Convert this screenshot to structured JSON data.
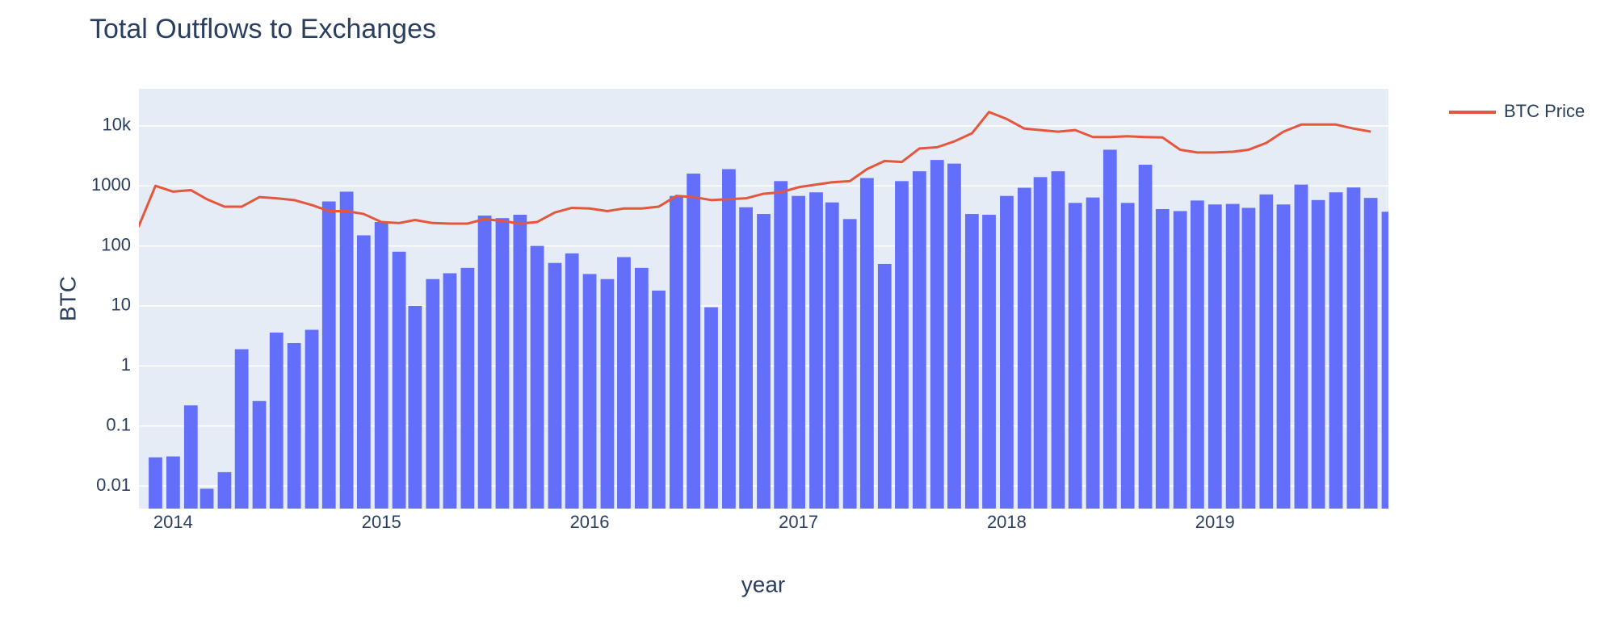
{
  "chart_data": {
    "type": "bar",
    "title": "Total Outflows to Exchanges",
    "x_label": "year",
    "y_label": "BTC",
    "log_y": true,
    "grid": true,
    "legend_position": "top-right",
    "xlim": [
      "2013-11-02",
      "2019-11-01"
    ],
    "xticks": [
      "2014",
      "2015",
      "2016",
      "2017",
      "2018",
      "2019"
    ],
    "ylim": [
      0.0042,
      41400
    ],
    "yticks": [
      {
        "value": 10000,
        "label": "10k"
      },
      1000,
      100,
      10,
      1,
      0.1,
      0.01
    ],
    "series": [
      {
        "type": "bar",
        "color": "#636efa",
        "x": [
          "2013-12",
          "2014-01",
          "2014-02",
          "2014-03",
          "2014-04",
          "2014-05",
          "2014-06",
          "2014-07",
          "2014-08",
          "2014-09",
          "2014-10",
          "2014-11",
          "2014-12",
          "2015-01",
          "2015-02",
          "2015-03",
          "2015-04",
          "2015-05",
          "2015-06",
          "2015-07",
          "2015-08",
          "2015-09",
          "2015-10",
          "2015-11",
          "2015-12",
          "2016-01",
          "2016-02",
          "2016-03",
          "2016-04",
          "2016-05",
          "2016-06",
          "2016-07",
          "2016-08",
          "2016-09",
          "2016-10",
          "2016-11",
          "2016-12",
          "2017-01",
          "2017-02",
          "2017-03",
          "2017-04",
          "2017-05",
          "2017-06",
          "2017-07",
          "2017-08",
          "2017-09",
          "2017-10",
          "2017-11",
          "2017-12",
          "2018-01",
          "2018-02",
          "2018-03",
          "2018-04",
          "2018-05",
          "2018-06",
          "2018-07",
          "2018-08",
          "2018-09",
          "2018-10",
          "2018-11",
          "2018-12",
          "2019-01",
          "2019-02",
          "2019-03",
          "2019-04",
          "2019-05",
          "2019-06",
          "2019-07",
          "2019-08",
          "2019-09",
          "2019-10",
          "2019-11"
        ],
        "values": [
          0.03,
          0.031,
          0.22,
          0.009,
          0.017,
          1.9,
          0.26,
          3.6,
          2.4,
          4,
          550,
          800,
          150,
          250,
          80,
          10,
          28,
          35,
          43,
          320,
          290,
          330,
          100,
          52,
          75,
          34,
          28,
          65,
          43,
          18,
          680,
          1600,
          9.5,
          1900,
          440,
          340,
          1200,
          680,
          780,
          530,
          280,
          1350,
          50,
          1200,
          1750,
          2700,
          2350,
          340,
          330,
          680,
          930,
          1400,
          1750,
          520,
          640,
          4000,
          520,
          2250,
          410,
          380,
          570,
          490,
          500,
          430,
          720,
          490,
          1050,
          580,
          780,
          940,
          630,
          370
        ]
      },
      {
        "type": "line",
        "name": "BTC Price",
        "color": "#e4573d",
        "x": [
          "2013-11",
          "2013-12",
          "2014-01",
          "2014-02",
          "2014-03",
          "2014-04",
          "2014-05",
          "2014-06",
          "2014-07",
          "2014-08",
          "2014-09",
          "2014-10",
          "2014-11",
          "2014-12",
          "2015-01",
          "2015-02",
          "2015-03",
          "2015-04",
          "2015-05",
          "2015-06",
          "2015-07",
          "2015-08",
          "2015-09",
          "2015-10",
          "2015-11",
          "2015-12",
          "2016-01",
          "2016-02",
          "2016-03",
          "2016-04",
          "2016-05",
          "2016-06",
          "2016-07",
          "2016-08",
          "2016-09",
          "2016-10",
          "2016-11",
          "2016-12",
          "2017-01",
          "2017-02",
          "2017-03",
          "2017-04",
          "2017-05",
          "2017-06",
          "2017-07",
          "2017-08",
          "2017-09",
          "2017-10",
          "2017-11",
          "2017-12",
          "2018-01",
          "2018-02",
          "2018-03",
          "2018-04",
          "2018-05",
          "2018-06",
          "2018-07",
          "2018-08",
          "2018-09",
          "2018-10",
          "2018-11",
          "2018-12",
          "2019-01",
          "2019-02",
          "2019-03",
          "2019-04",
          "2019-05",
          "2019-06",
          "2019-07",
          "2019-08",
          "2019-09",
          "2019-10"
        ],
        "values": [
          205,
          1000,
          800,
          850,
          600,
          450,
          450,
          650,
          620,
          580,
          480,
          380,
          380,
          340,
          250,
          240,
          270,
          240,
          235,
          235,
          280,
          260,
          235,
          250,
          360,
          430,
          420,
          380,
          420,
          420,
          450,
          680,
          650,
          580,
          600,
          620,
          740,
          780,
          950,
          1050,
          1150,
          1200,
          1900,
          2600,
          2500,
          4200,
          4400,
          5500,
          7500,
          17000,
          13000,
          9000,
          8500,
          8000,
          8500,
          6500,
          6500,
          6700,
          6500,
          6400,
          4000,
          3600,
          3600,
          3700,
          4000,
          5200,
          8000,
          10500,
          10500,
          10500,
          9000,
          8000
        ]
      }
    ]
  }
}
